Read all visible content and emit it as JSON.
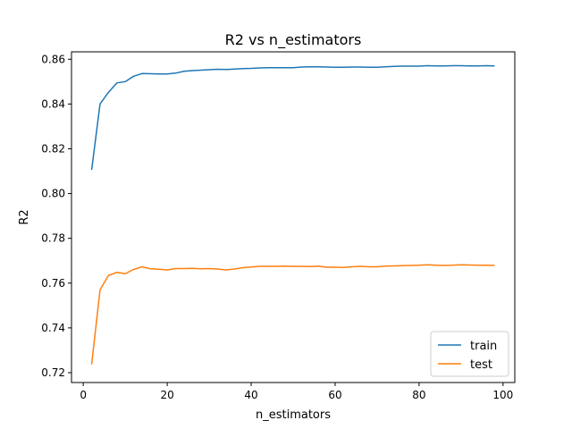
{
  "chart_data": {
    "type": "line",
    "title": "R2 vs n_estimators",
    "xlabel": "n_estimators",
    "ylabel": "R2",
    "xlim": [
      -2.8,
      102.8
    ],
    "ylim": [
      0.7156,
      0.8633
    ],
    "xticks": [
      "0",
      "20",
      "40",
      "60",
      "80",
      "100"
    ],
    "yticks": [
      "0.72",
      "0.74",
      "0.76",
      "0.78",
      "0.80",
      "0.82",
      "0.84",
      "0.86"
    ],
    "x": [
      2,
      4,
      6,
      8,
      10,
      12,
      14,
      16,
      18,
      20,
      22,
      24,
      26,
      28,
      30,
      32,
      34,
      36,
      38,
      40,
      42,
      44,
      46,
      48,
      50,
      52,
      54,
      56,
      58,
      60,
      62,
      64,
      66,
      68,
      70,
      72,
      74,
      76,
      78,
      80,
      82,
      84,
      86,
      88,
      90,
      92,
      94,
      96,
      98
    ],
    "series": [
      {
        "name": "train",
        "color": "#1f77b4",
        "values": [
          0.8106,
          0.84,
          0.8452,
          0.8494,
          0.85,
          0.8524,
          0.8536,
          0.8535,
          0.8534,
          0.8534,
          0.8538,
          0.8546,
          0.8549,
          0.8551,
          0.8553,
          0.8555,
          0.8554,
          0.8556,
          0.8558,
          0.8559,
          0.8561,
          0.8562,
          0.8562,
          0.8562,
          0.8562,
          0.8565,
          0.8566,
          0.8566,
          0.8565,
          0.8564,
          0.8564,
          0.8565,
          0.8565,
          0.8564,
          0.8564,
          0.8566,
          0.8568,
          0.8569,
          0.8569,
          0.8569,
          0.8571,
          0.857,
          0.857,
          0.8571,
          0.8571,
          0.857,
          0.857,
          0.8571,
          0.857
        ]
      },
      {
        "name": "test",
        "color": "#ff7f0e",
        "values": [
          0.7237,
          0.757,
          0.7634,
          0.7648,
          0.7642,
          0.7661,
          0.7673,
          0.7664,
          0.7662,
          0.7659,
          0.7665,
          0.7665,
          0.7666,
          0.7664,
          0.7665,
          0.7663,
          0.7659,
          0.7663,
          0.7669,
          0.7672,
          0.7675,
          0.7675,
          0.7675,
          0.7676,
          0.7675,
          0.7675,
          0.7674,
          0.7676,
          0.7671,
          0.7671,
          0.767,
          0.7673,
          0.7675,
          0.7673,
          0.7673,
          0.7676,
          0.7677,
          0.7678,
          0.7679,
          0.768,
          0.7682,
          0.768,
          0.7679,
          0.768,
          0.7682,
          0.7681,
          0.768,
          0.768,
          0.7679
        ]
      }
    ],
    "legend": "lower right",
    "grid": false
  }
}
